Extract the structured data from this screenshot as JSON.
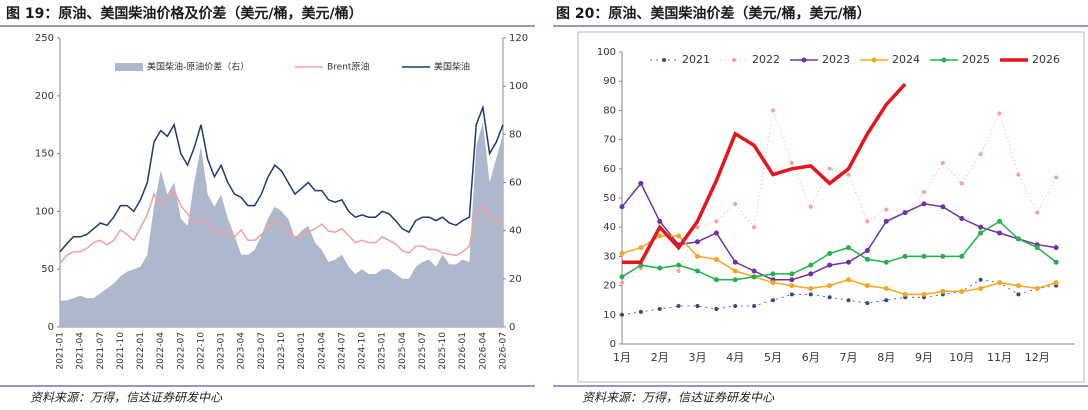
{
  "chart_data": [
    {
      "type": "line",
      "title": "图 19：原油、美国柴油价格及价差（美元/桶，美元/桶）",
      "source": "资料来源：万得，信达证券研发中心",
      "categories": [
        "2021-01",
        null,
        null,
        "2021-04",
        null,
        null,
        "2021-07",
        null,
        null,
        "2021-10",
        null,
        null,
        "2022-01",
        null,
        null,
        "2022-04",
        null,
        null,
        "2022-07",
        null,
        null,
        "2022-10",
        null,
        null,
        "2023-01",
        null,
        null,
        "2023-04",
        null,
        null,
        "2023-07",
        null,
        null,
        "2023-10",
        null,
        null,
        "2024-01",
        null,
        null,
        "2024-04",
        null,
        null,
        "2024-07",
        null,
        null,
        "2024-10",
        null,
        null,
        "2025-01",
        null,
        null,
        "2025-04",
        null,
        null,
        "2025-07",
        null,
        null,
        "2025-10",
        null,
        null,
        "2026-01",
        null,
        null,
        "2026-04",
        null,
        null,
        "2026-07"
      ],
      "series": [
        {
          "name": "美国柴油-原油价差（右）",
          "color": "#aeb8cc",
          "axis": "y2",
          "kind": "area",
          "values": [
            11,
            11,
            12,
            13,
            12,
            12,
            14,
            16,
            18,
            21,
            23,
            24,
            25,
            30,
            50,
            65,
            55,
            60,
            45,
            42,
            60,
            75,
            55,
            50,
            55,
            45,
            38,
            30,
            30,
            32,
            38,
            45,
            50,
            48,
            45,
            37,
            40,
            42,
            35,
            32,
            27,
            28,
            30,
            25,
            22,
            24,
            22,
            22,
            24,
            24,
            22,
            20,
            20,
            25,
            27,
            28,
            25,
            30,
            26,
            26,
            28,
            27,
            75,
            85,
            60,
            70,
            80
          ]
        },
        {
          "name": "Brent原油",
          "color": "#f4a0a0",
          "values": [
            55,
            62,
            65,
            65,
            68,
            73,
            75,
            71,
            75,
            84,
            80,
            75,
            86,
            97,
            115,
            105,
            112,
            118,
            105,
            98,
            90,
            93,
            90,
            81,
            83,
            83,
            78,
            84,
            75,
            75,
            80,
            86,
            93,
            89,
            82,
            78,
            79,
            82,
            85,
            89,
            83,
            82,
            85,
            79,
            73,
            75,
            73,
            73,
            78,
            75,
            72,
            66,
            64,
            70,
            70,
            67,
            67,
            64,
            63,
            62,
            65,
            70,
            100,
            105,
            95,
            90,
            95
          ]
        },
        {
          "name": "美国柴油",
          "color": "#1f3a6e",
          "values": [
            65,
            72,
            78,
            78,
            80,
            85,
            90,
            88,
            95,
            105,
            105,
            100,
            110,
            125,
            160,
            170,
            165,
            175,
            150,
            140,
            155,
            175,
            145,
            130,
            140,
            125,
            115,
            112,
            105,
            105,
            115,
            130,
            140,
            135,
            125,
            115,
            120,
            125,
            118,
            118,
            110,
            108,
            110,
            100,
            95,
            97,
            95,
            95,
            100,
            98,
            92,
            85,
            82,
            92,
            95,
            95,
            92,
            95,
            90,
            88,
            92,
            95,
            175,
            190,
            150,
            160,
            175
          ]
        }
      ],
      "ylim": [
        0,
        250
      ],
      "yticks": [
        0,
        50,
        100,
        150,
        200,
        250
      ],
      "y2lim": [
        0,
        120
      ],
      "y2ticks": [
        0,
        20,
        40,
        60,
        80,
        100,
        120
      ]
    },
    {
      "type": "line",
      "title": "图 20：原油、美国柴油价差（美元/桶，美元/桶）",
      "source": "资料来源：万得，信达证券研发中心",
      "categories": [
        "1月",
        null,
        "2月",
        null,
        "3月",
        null,
        "4月",
        null,
        "5月",
        null,
        "6月",
        null,
        "7月",
        null,
        "8月",
        null,
        "9月",
        null,
        "10月",
        null,
        "11月",
        null,
        "12月",
        null
      ],
      "series": [
        {
          "name": "2021",
          "color": "#2f4e7a",
          "values": [
            10,
            11,
            12,
            13,
            13,
            12,
            13,
            13,
            15,
            17,
            17,
            16,
            15,
            14,
            15,
            16,
            16,
            17,
            18,
            22,
            21,
            17,
            19,
            20
          ]
        },
        {
          "name": "2022",
          "color": "#f4a0a0",
          "values": [
            21,
            26,
            26,
            25,
            40,
            42,
            48,
            40,
            80,
            62,
            47,
            60,
            58,
            42,
            46,
            45,
            52,
            62,
            55,
            65,
            79,
            58,
            45,
            57
          ]
        },
        {
          "name": "2023",
          "color": "#7030a0",
          "values": [
            47,
            55,
            42,
            34,
            35,
            38,
            28,
            25,
            22,
            22,
            24,
            27,
            28,
            32,
            42,
            45,
            48,
            47,
            43,
            40,
            38,
            36,
            34,
            33
          ]
        },
        {
          "name": "2024",
          "color": "#f5a623",
          "values": [
            31,
            33,
            37,
            37,
            30,
            29,
            25,
            23,
            21,
            20,
            19,
            20,
            22,
            20,
            19,
            17,
            17,
            18,
            18,
            19,
            21,
            20,
            19,
            21
          ]
        },
        {
          "name": "2025",
          "color": "#22b14c",
          "values": [
            23,
            27,
            26,
            27,
            25,
            22,
            22,
            23,
            24,
            24,
            27,
            31,
            33,
            29,
            28,
            30,
            30,
            30,
            30,
            38,
            42,
            36,
            33,
            28
          ]
        },
        {
          "name": "2026",
          "color": "#e8141b",
          "values": [
            28,
            28,
            40,
            33,
            42,
            56,
            72,
            68,
            58,
            60,
            61,
            55,
            60,
            72,
            82,
            89,
            null,
            null,
            null,
            null,
            null,
            null,
            null,
            null
          ]
        }
      ],
      "ylim": [
        0,
        100
      ],
      "yticks": [
        0,
        10,
        20,
        30,
        40,
        50,
        60,
        70,
        80,
        90,
        100
      ]
    }
  ]
}
